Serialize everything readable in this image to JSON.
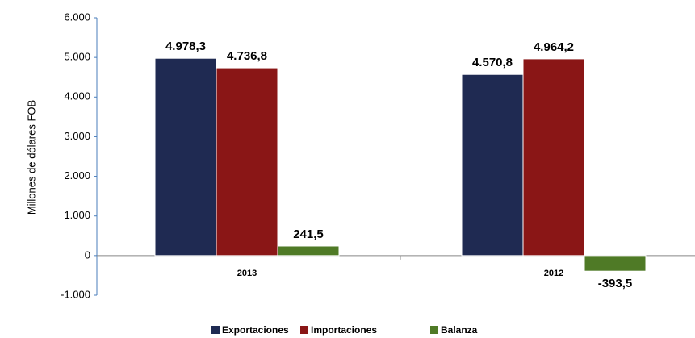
{
  "chart_data": {
    "type": "bar",
    "y_label": "Millones de dólares FOB",
    "categories": [
      "2013",
      "2012"
    ],
    "series": [
      {
        "name": "Exportaciones",
        "color": "#1f2a52",
        "values": [
          4978.3,
          4570.8
        ],
        "value_labels": [
          "4.978,3",
          "4.570,8"
        ]
      },
      {
        "name": "Importaciones",
        "color": "#8a1616",
        "values": [
          4736.8,
          4964.2
        ],
        "value_labels": [
          "4.736,8",
          "4.964,2"
        ]
      },
      {
        "name": "Balanza",
        "color": "#4f7a26",
        "values": [
          241.5,
          -393.5
        ],
        "value_labels": [
          "241,5",
          "-393,5"
        ]
      }
    ],
    "ylim": [
      -1000,
      6000
    ],
    "yticks": [
      {
        "value": -1000,
        "label": "-1.000"
      },
      0,
      {
        "value": 1000,
        "label": "1.000"
      },
      {
        "value": 2000,
        "label": "2.000"
      },
      {
        "value": 3000,
        "label": "3.000"
      },
      {
        "value": 4000,
        "label": "4.000"
      },
      {
        "value": 5000,
        "label": "5.000"
      },
      {
        "value": 6000,
        "label": "6.000"
      }
    ],
    "legend": "bottom"
  }
}
